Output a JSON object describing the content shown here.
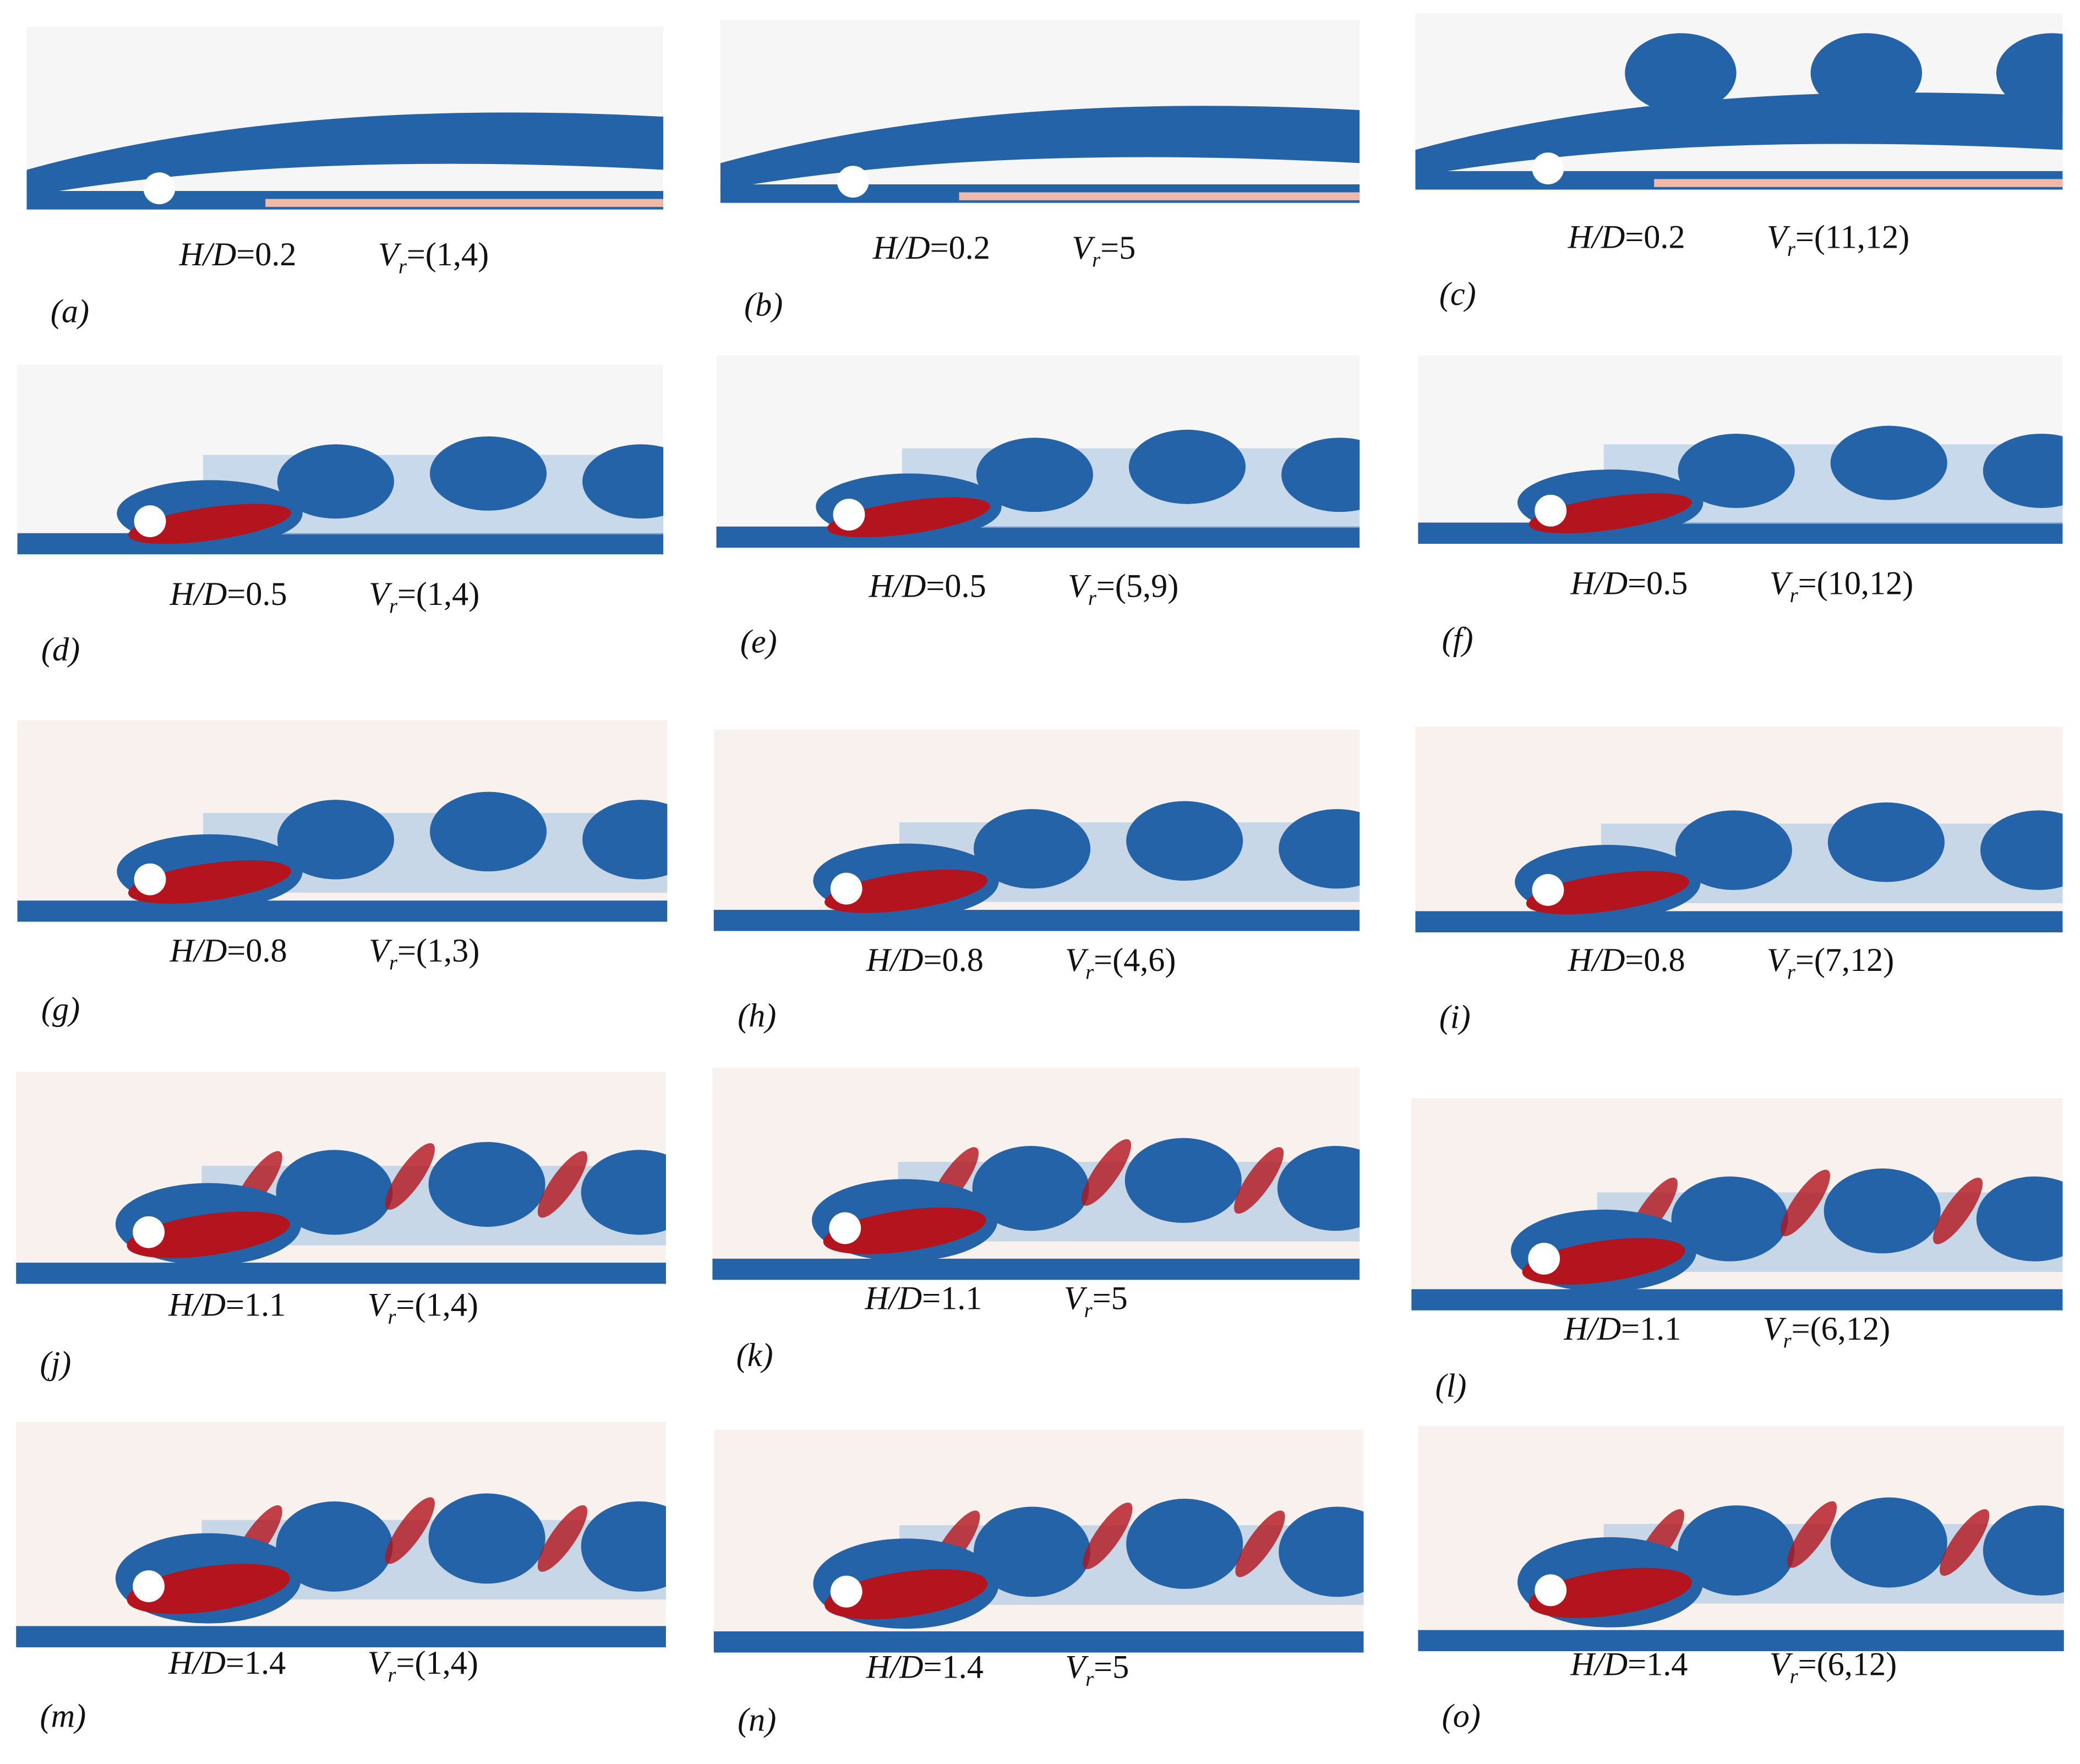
{
  "hd_symbol": "H/D",
  "vr_symbol": "V",
  "vr_subscript": "r",
  "panels": [
    {
      "label": "(a)",
      "hd": "=0.2",
      "vr": "=(1,4)"
    },
    {
      "label": "(b)",
      "hd": "=0.2",
      "vr": "=5"
    },
    {
      "label": "(c)",
      "hd": "=0.2",
      "vr": "=(11,12)"
    },
    {
      "label": "(d)",
      "hd": "=0.5",
      "vr": "=(1,4)"
    },
    {
      "label": "(e)",
      "hd": "=0.5",
      "vr": "=(5,9)"
    },
    {
      "label": "(f)",
      "hd": "=0.5",
      "vr": "=(10,12)"
    },
    {
      "label": "(g)",
      "hd": "=0.8",
      "vr": "=(1,3)"
    },
    {
      "label": "(h)",
      "hd": "=0.8",
      "vr": "=(4,6)"
    },
    {
      "label": "(i)",
      "hd": "=0.8",
      "vr": "=(7,12)"
    },
    {
      "label": "(j)",
      "hd": "=1.1",
      "vr": "=(1,4)"
    },
    {
      "label": "(k)",
      "hd": "=1.1",
      "vr": "=5"
    },
    {
      "label": "(l)",
      "hd": "=1.1",
      "vr": "=(6,12)"
    },
    {
      "label": "(m)",
      "hd": "=1.4",
      "vr": "=(1,4)"
    },
    {
      "label": "(n)",
      "hd": "=1.4",
      "vr": "=5"
    },
    {
      "label": "(o)",
      "hd": "=1.4",
      "vr": "=(6,12)"
    }
  ]
}
